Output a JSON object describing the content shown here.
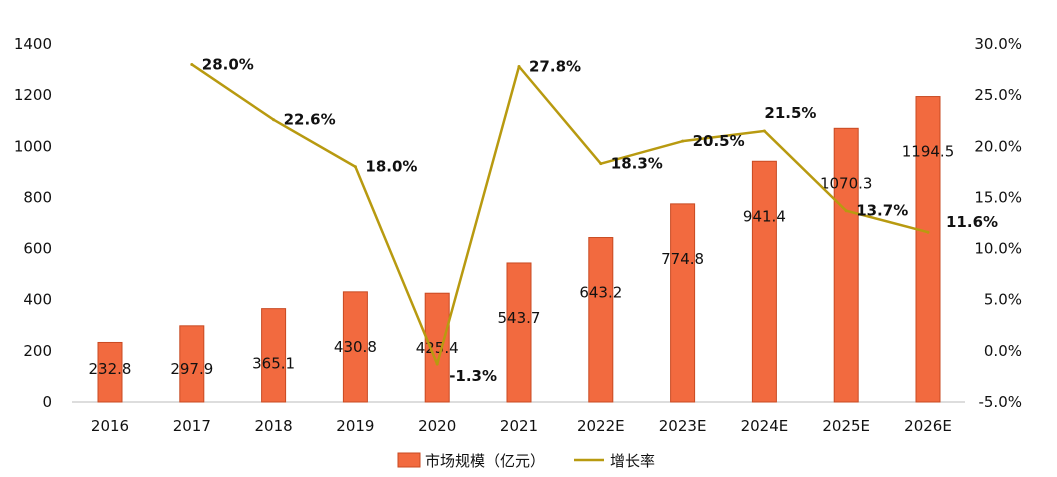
{
  "chart_data": {
    "type": "bar",
    "categories": [
      "2016",
      "2017",
      "2018",
      "2019",
      "2020",
      "2021",
      "2022E",
      "2023E",
      "2024E",
      "2025E",
      "2026E"
    ],
    "series": [
      {
        "name": "市场规模（亿元）",
        "type": "bar",
        "axis": "left",
        "values": [
          232.8,
          297.9,
          365.1,
          430.8,
          425.4,
          543.7,
          643.2,
          774.8,
          941.4,
          1070.3,
          1194.5
        ],
        "labels": [
          "232.8",
          "297.9",
          "365.1",
          "430.8",
          "425.4",
          "543.7",
          "643.2",
          "774.8",
          "941.4",
          "1070.3",
          "1194.5"
        ]
      },
      {
        "name": "增长率",
        "type": "line",
        "axis": "right",
        "values": [
          null,
          28.0,
          22.6,
          18.0,
          -1.3,
          27.8,
          18.3,
          20.5,
          21.5,
          13.7,
          11.6
        ],
        "labels": [
          "",
          "28.0%",
          "22.6%",
          "18.0%",
          "-1.3%",
          "27.8%",
          "18.3%",
          "20.5%",
          "21.5%",
          "13.7%",
          "11.6%"
        ]
      }
    ],
    "y_left": {
      "min": 0,
      "max": 1400,
      "ticks": [
        "0",
        "200",
        "400",
        "600",
        "800",
        "1000",
        "1200",
        "1400"
      ]
    },
    "y_right": {
      "min": -5,
      "max": 30,
      "ticks": [
        "-5.0%",
        "0.0%",
        "5.0%",
        "10.0%",
        "15.0%",
        "20.0%",
        "25.0%",
        "30.0%"
      ]
    },
    "grid": false,
    "legend": "bottom-center",
    "colors": {
      "bar": "#f26a3f",
      "bar_edge": "#c84a22",
      "line": "#b89a10"
    }
  }
}
